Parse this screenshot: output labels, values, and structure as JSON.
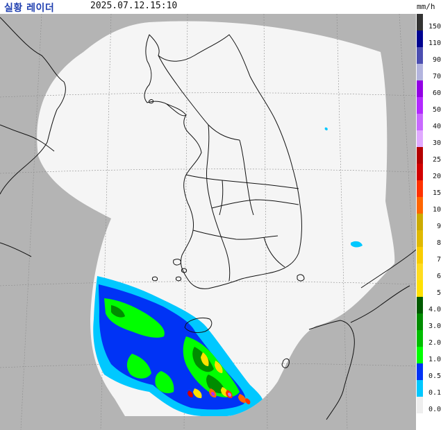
{
  "header": {
    "title": "실황 레이더",
    "timestamp": "2025.07.12.15:10",
    "unit": "mm/h"
  },
  "map": {
    "background_color": "#b4b4b4",
    "coverage_color": "#f5f5f5",
    "coastline_color": "#111111",
    "grid_color": "#8c8c8c"
  },
  "legend": {
    "items": [
      {
        "label": "150",
        "color": "#333333"
      },
      {
        "label": "110",
        "color": "#000390"
      },
      {
        "label": "90",
        "color": "#4c4eb1"
      },
      {
        "label": "70",
        "color": "#b3b4de"
      },
      {
        "label": "60",
        "color": "#9300e4"
      },
      {
        "label": "50",
        "color": "#b329ff"
      },
      {
        "label": "40",
        "color": "#c969ff"
      },
      {
        "label": "30",
        "color": "#e0a9ff"
      },
      {
        "label": "25",
        "color": "#b40000"
      },
      {
        "label": "20",
        "color": "#d20000"
      },
      {
        "label": "15",
        "color": "#ff3200"
      },
      {
        "label": "10",
        "color": "#ff6600"
      },
      {
        "label": "9",
        "color": "#ccaa00"
      },
      {
        "label": "8",
        "color": "#e0b900"
      },
      {
        "label": "7",
        "color": "#f9cd00"
      },
      {
        "label": "6",
        "color": "#ffdc1f"
      },
      {
        "label": "5",
        "color": "#ffe100"
      },
      {
        "label": "4.0",
        "color": "#005a00"
      },
      {
        "label": "3.0",
        "color": "#008c00"
      },
      {
        "label": "2.0",
        "color": "#00be00"
      },
      {
        "label": "1.0",
        "color": "#00ff00"
      },
      {
        "label": "0.5",
        "color": "#0033f5"
      },
      {
        "label": "0.1",
        "color": "#00c8ff"
      },
      {
        "label": "0.0",
        "color": "#eeeeee"
      }
    ]
  }
}
